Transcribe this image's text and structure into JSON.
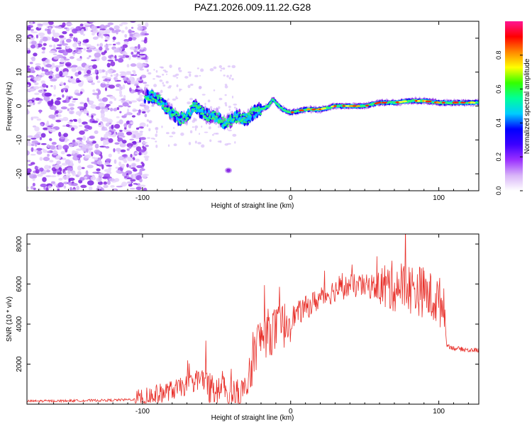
{
  "chart_data": [
    {
      "type": "heatmap",
      "title": "PAZ1.2026.009.11.22.G28",
      "xlabel": "Height of straight line (km)",
      "ylabel": "Frequency (Hz)",
      "xlim": [
        -178,
        127
      ],
      "ylim": [
        -25,
        25
      ],
      "xticks": [
        -100,
        0,
        100
      ],
      "yticks": [
        -20,
        -10,
        0,
        10,
        20
      ],
      "noise_region_x": [
        -178,
        -97
      ],
      "track": {
        "x": [
          -98,
          -90,
          -85,
          -80,
          -75,
          -70,
          -65,
          -60,
          -55,
          -50,
          -45,
          -40,
          -35,
          -30,
          -25,
          -20,
          -15,
          -12,
          -8,
          -5,
          0,
          10,
          20,
          30,
          40,
          50,
          60,
          70,
          80,
          90,
          100,
          110,
          127
        ],
        "y": [
          3,
          2.5,
          0,
          -2,
          -4,
          -3,
          0,
          -2,
          -3,
          -3,
          -5,
          -4,
          -3,
          -4,
          -2,
          -1,
          0,
          2,
          0,
          -1,
          -2,
          -1,
          -1,
          0,
          0,
          0,
          1,
          1,
          1.5,
          1.5,
          1,
          1,
          1
        ]
      },
      "outlier_points": [
        {
          "x": -42,
          "y": -19
        }
      ],
      "colorbar": {
        "label": "Normalized spectral amplitude",
        "range": [
          0.0,
          1.0
        ],
        "ticks": [
          "0.0",
          "0.2",
          "0.4",
          "0.6",
          "0.8"
        ],
        "tick_values": [
          0.0,
          0.2,
          0.4,
          0.6,
          0.8
        ],
        "colors": [
          "#ffffff",
          "#d8b4f8",
          "#9b30ff",
          "#3c00ff",
          "#0000ff",
          "#00ccff",
          "#00ff99",
          "#33ff00",
          "#ffff00",
          "#ff8800",
          "#ff0000",
          "#ff1493"
        ]
      }
    },
    {
      "type": "line",
      "title": "",
      "xlabel": "Height of straight line (km)",
      "ylabel": "SNR (10 * v/v)",
      "xlim": [
        -178,
        127
      ],
      "ylim": [
        0,
        8500
      ],
      "xticks": [
        -100,
        0,
        100
      ],
      "yticks": [
        2000,
        4000,
        6000,
        8000
      ],
      "color": "#e8302a",
      "series": [
        {
          "name": "SNR",
          "x": [
            -178,
            -150,
            -120,
            -100,
            -95,
            -85,
            -75,
            -65,
            -60,
            -55,
            -50,
            -45,
            -40,
            -35,
            -30,
            -27,
            -25,
            -20,
            -15,
            -10,
            -5,
            0,
            10,
            20,
            30,
            40,
            50,
            60,
            70,
            75,
            80,
            85,
            90,
            95,
            100,
            104,
            105,
            107,
            110,
            120,
            127
          ],
          "y": [
            150,
            170,
            200,
            250,
            400,
            600,
            800,
            1100,
            1300,
            700,
            700,
            650,
            500,
            400,
            700,
            1300,
            2700,
            3300,
            3600,
            3700,
            3900,
            4300,
            4800,
            5300,
            5700,
            5900,
            5900,
            5800,
            5900,
            5900,
            5800,
            5700,
            5600,
            5300,
            5100,
            5000,
            3000,
            2900,
            2800,
            2700,
            2700
          ]
        }
      ],
      "noise_amplitude": [
        {
          "x": [
            -178,
            -105
          ],
          "amp": 60
        },
        {
          "x": [
            -105,
            -60
          ],
          "amp": 500
        },
        {
          "x": [
            -60,
            -28
          ],
          "amp": 900
        },
        {
          "x": [
            -28,
            0
          ],
          "amp": 1200
        },
        {
          "x": [
            0,
            60
          ],
          "amp": 600
        },
        {
          "x": [
            60,
            104
          ],
          "amp": 1300
        },
        {
          "x": [
            104,
            127
          ],
          "amp": 120
        }
      ]
    }
  ]
}
